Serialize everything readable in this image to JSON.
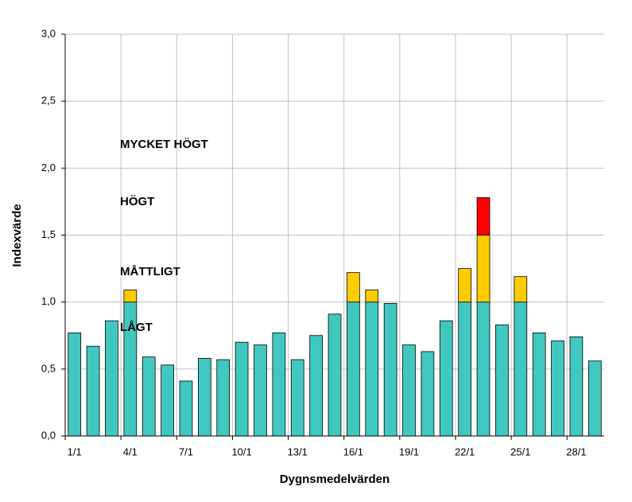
{
  "chart_data": {
    "type": "stacked_bar",
    "x_label": "Dygnsmedelvärden",
    "y_label": "Indexvärde",
    "categories": [
      "1/1",
      null,
      null,
      "4/1",
      null,
      null,
      "7/1",
      null,
      null,
      "10/1",
      null,
      null,
      "13/1",
      null,
      null,
      "16/1",
      null,
      null,
      "19/1",
      null,
      null,
      "22/1",
      null,
      null,
      "25/1",
      null,
      null,
      "28/1",
      null
    ],
    "series": [
      {
        "color": "#40c8c0",
        "values": [
          0.77,
          0.67,
          0.86,
          1.0,
          0.59,
          0.53,
          0.41,
          0.58,
          0.57,
          0.7,
          0.68,
          0.77,
          0.57,
          0.75,
          0.91,
          1.0,
          1.0,
          0.99,
          0.68,
          0.63,
          0.86,
          1.0,
          1.0,
          0.83,
          1.0,
          0.77,
          0.71,
          0.74,
          0.56
        ]
      },
      {
        "color": "#ffcc00",
        "values": [
          null,
          null,
          null,
          0.09,
          null,
          null,
          null,
          null,
          null,
          null,
          null,
          null,
          null,
          null,
          null,
          0.22,
          0.09,
          null,
          null,
          null,
          null,
          0.25,
          0.5,
          null,
          0.19,
          null,
          null,
          null,
          null
        ]
      },
      {
        "color": "#ff0000",
        "values": [
          null,
          null,
          null,
          null,
          null,
          null,
          null,
          null,
          null,
          null,
          null,
          null,
          null,
          null,
          null,
          null,
          null,
          null,
          null,
          null,
          null,
          null,
          0.28,
          null,
          null,
          null,
          null,
          null,
          null
        ]
      }
    ],
    "annotations": [
      {
        "text": "MYCKET HÖGT",
        "color": "#000000"
      },
      {
        "text": "HÖGT",
        "color": "#ff0000"
      },
      {
        "text": "MÅTTLIGT",
        "color": "#a0410d"
      },
      {
        "text": "LÅGT",
        "color": "#0000ff"
      }
    ],
    "ylim": [
      0,
      3
    ],
    "yticks": [
      {
        "value": 0,
        "label": "0,0"
      },
      {
        "value": 0.5,
        "label": "0,5"
      },
      {
        "value": 1,
        "label": "1,0"
      },
      {
        "value": 1.5,
        "label": "1,5"
      },
      {
        "value": 2,
        "label": "2,0"
      },
      {
        "value": 2.5,
        "label": "2,5"
      },
      {
        "value": 3,
        "label": "3,0"
      }
    ],
    "grid": true
  }
}
